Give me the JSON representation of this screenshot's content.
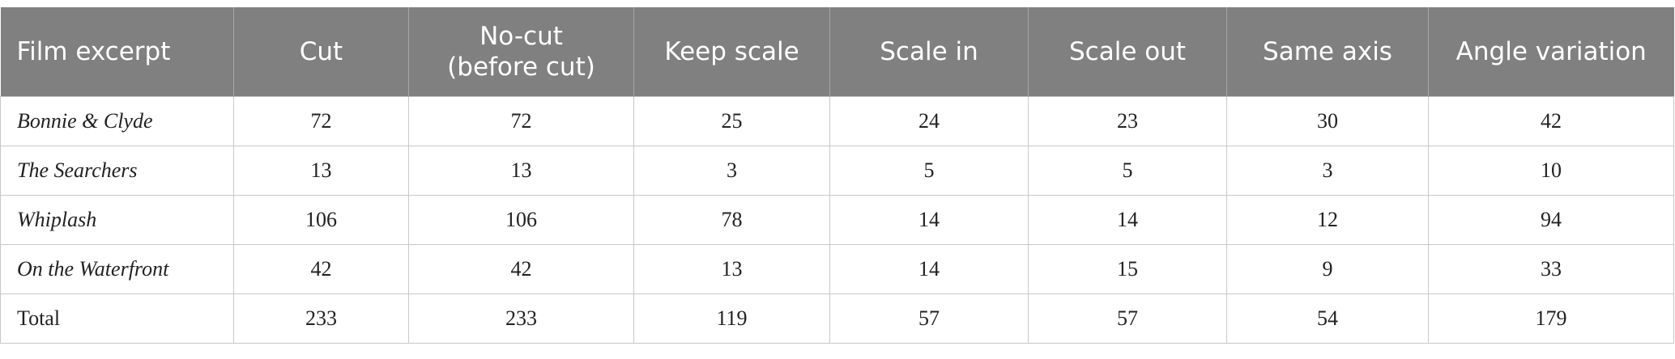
{
  "table": {
    "headers": [
      "Film excerpt",
      "Cut",
      "No-cut\n(before cut)",
      "Keep scale",
      "Scale in",
      "Scale out",
      "Same axis",
      "Angle variation"
    ],
    "rows": [
      [
        "Bonnie & Clyde",
        72,
        72,
        25,
        24,
        23,
        30,
        42
      ],
      [
        "The Searchers",
        13,
        13,
        3,
        5,
        5,
        3,
        10
      ],
      [
        "Whiplash",
        106,
        106,
        78,
        14,
        14,
        12,
        94
      ],
      [
        "On the Waterfront",
        42,
        42,
        13,
        14,
        15,
        9,
        33
      ],
      [
        "Total",
        233,
        233,
        119,
        57,
        57,
        54,
        179
      ]
    ]
  }
}
